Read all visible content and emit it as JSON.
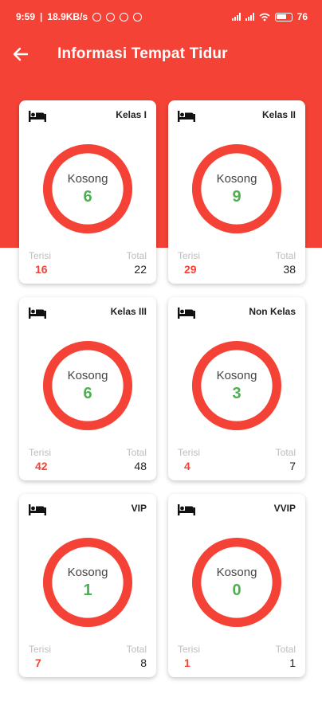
{
  "status_bar": {
    "time": "9:59",
    "net_speed": "18.9KB/s",
    "battery": "76"
  },
  "app_bar": {
    "title": "Informasi Tempat Tidur"
  },
  "colors": {
    "primary": "#f44336",
    "empty": "#4caf50",
    "filled": "#f44336"
  },
  "labels": {
    "kosong": "Kosong",
    "terisi": "Terisi",
    "total": "Total"
  },
  "beds": [
    {
      "class_name": "Kelas I",
      "kosong": 6,
      "terisi": 16,
      "total": 22
    },
    {
      "class_name": "Kelas II",
      "kosong": 9,
      "terisi": 29,
      "total": 38
    },
    {
      "class_name": "Kelas III",
      "kosong": 6,
      "terisi": 42,
      "total": 48
    },
    {
      "class_name": "Non Kelas",
      "kosong": 3,
      "terisi": 4,
      "total": 7
    },
    {
      "class_name": "VIP",
      "kosong": 1,
      "terisi": 7,
      "total": 8
    },
    {
      "class_name": "VVIP",
      "kosong": 0,
      "terisi": 1,
      "total": 1
    }
  ]
}
